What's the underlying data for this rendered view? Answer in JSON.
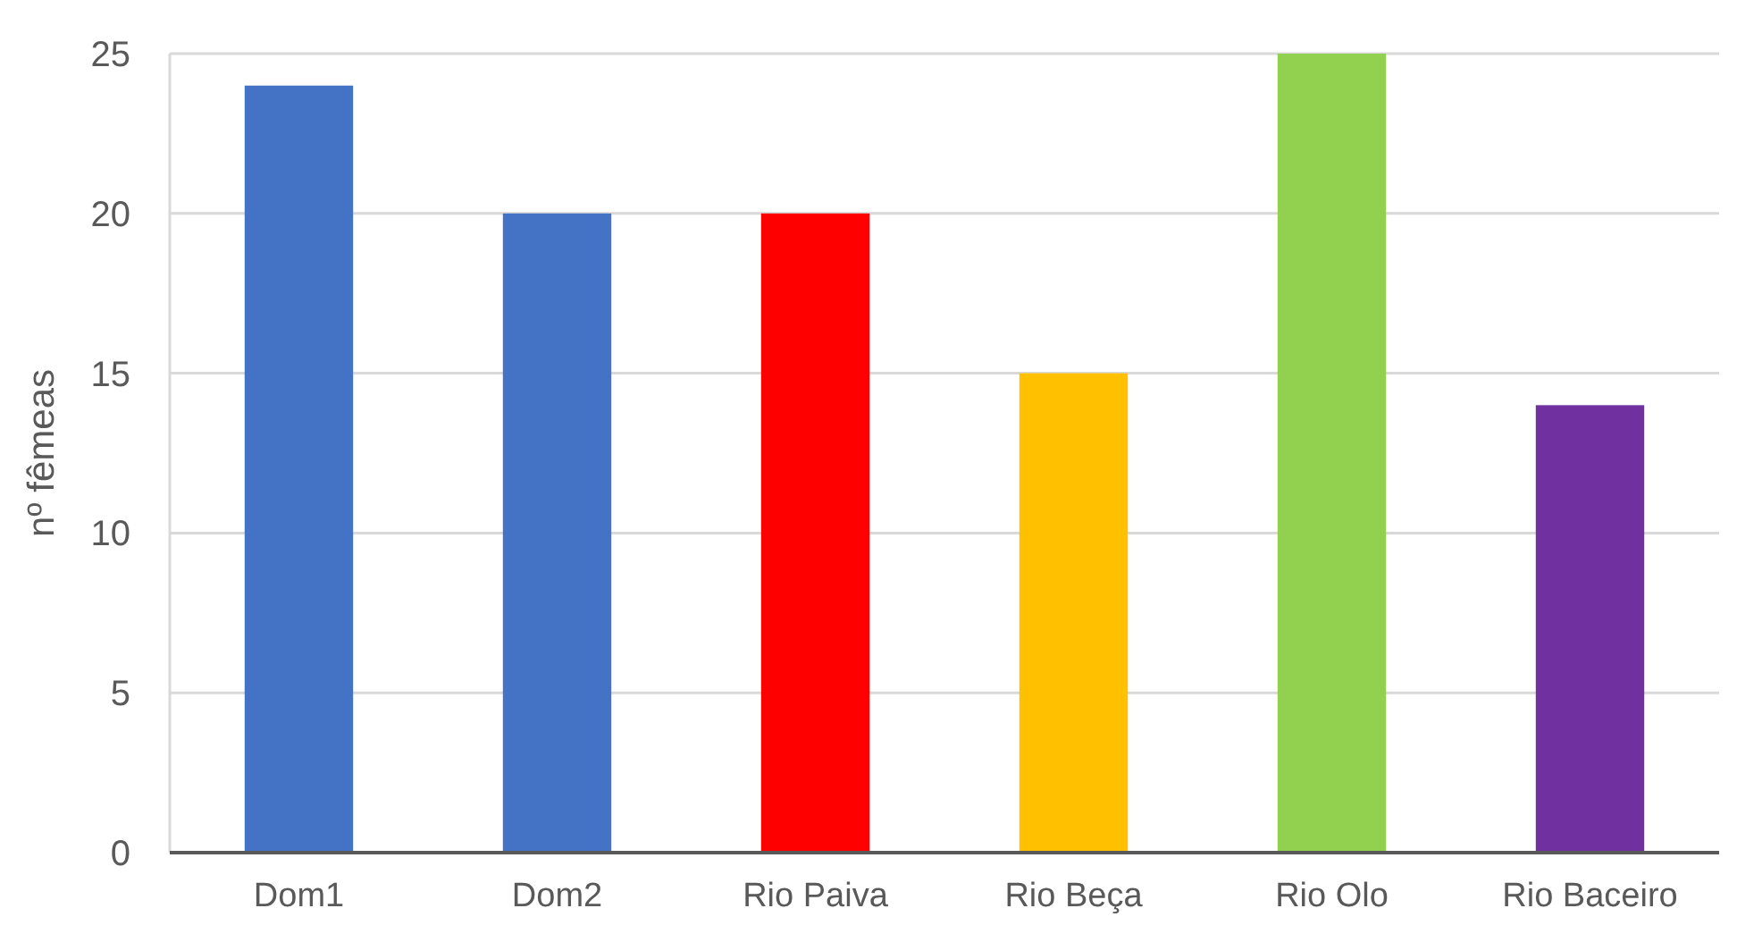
{
  "chart_data": {
    "type": "bar",
    "ylabel": "nº fêmeas",
    "categories": [
      "Dom1",
      "Dom2",
      "Rio Paiva",
      "Rio Beça",
      "Rio Olo",
      "Rio Baceiro"
    ],
    "values": [
      24,
      20,
      20,
      15,
      25,
      14
    ],
    "colors": [
      "#4472c4",
      "#4472c4",
      "#ff0000",
      "#ffc000",
      "#92d050",
      "#7030a0"
    ],
    "ylim": [
      0,
      25
    ],
    "yticks": [
      0,
      5,
      10,
      15,
      20,
      25
    ],
    "grid": "y"
  }
}
